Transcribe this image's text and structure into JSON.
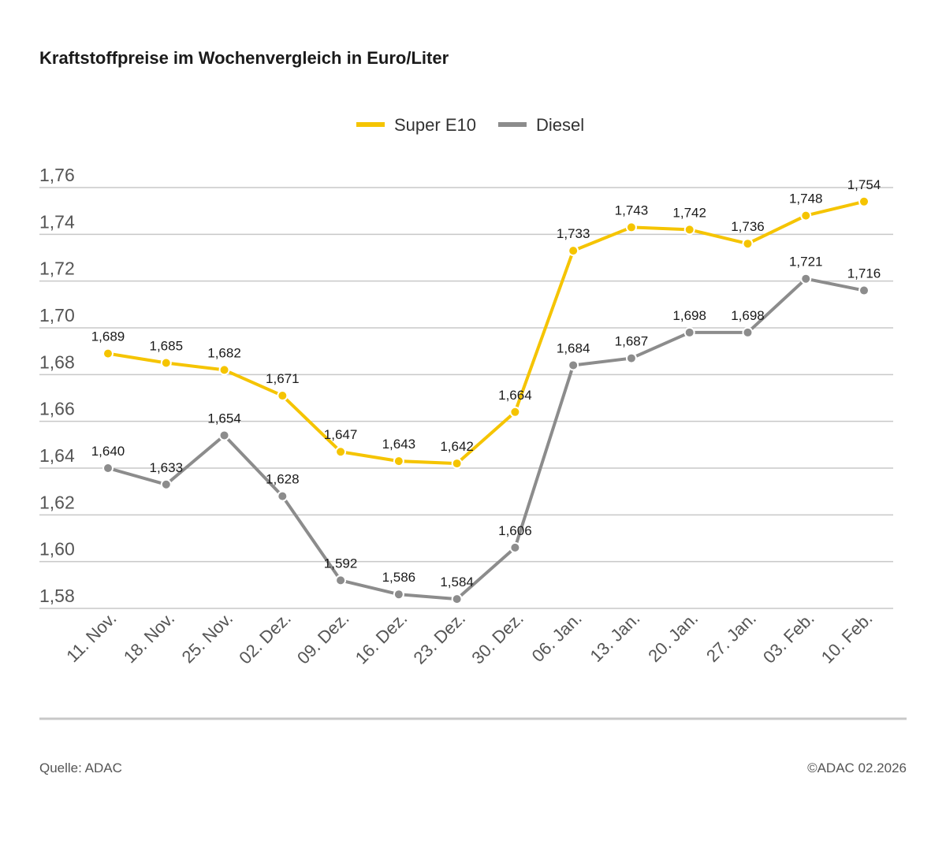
{
  "chart_data": {
    "type": "line",
    "title": "Kraftstoffpreise im Wochenvergleich in Euro/Liter",
    "categories": [
      "11. Nov.",
      "18. Nov.",
      "25. Nov.",
      "02. Dez.",
      "09. Dez.",
      "16. Dez.",
      "23. Dez.",
      "30. Dez.",
      "06. Jan.",
      "13. Jan.",
      "20. Jan.",
      "27. Jan.",
      "03. Feb.",
      "10. Feb."
    ],
    "series": [
      {
        "name": "Super E10",
        "color": "#f5c400",
        "values": [
          1.689,
          1.685,
          1.682,
          1.671,
          1.647,
          1.643,
          1.642,
          1.664,
          1.733,
          1.743,
          1.742,
          1.736,
          1.748,
          1.754
        ],
        "value_labels": [
          "1,689",
          "1,685",
          "1,682",
          "1,671",
          "1,647",
          "1,643",
          "1,642",
          "1,664",
          "1,733",
          "1,743",
          "1,742",
          "1,736",
          "1,748",
          "1,754"
        ]
      },
      {
        "name": "Diesel",
        "color": "#8c8c8c",
        "values": [
          1.64,
          1.633,
          1.654,
          1.628,
          1.592,
          1.586,
          1.584,
          1.606,
          1.684,
          1.687,
          1.698,
          1.698,
          1.721,
          1.716
        ],
        "value_labels": [
          "1,640",
          "1,633",
          "1,654",
          "1,628",
          "1,592",
          "1,586",
          "1,584",
          "1,606",
          "1,684",
          "1,687",
          "1,698",
          "1,698",
          "1,721",
          "1,716"
        ]
      }
    ],
    "ylim": [
      1.58,
      1.76
    ],
    "yticks": [
      {
        "value": 1.58,
        "label": "1,58"
      },
      {
        "value": 1.6,
        "label": "1,60"
      },
      {
        "value": 1.62,
        "label": "1,62"
      },
      {
        "value": 1.64,
        "label": "1,64"
      },
      {
        "value": 1.66,
        "label": "1,66"
      },
      {
        "value": 1.68,
        "label": "1,68"
      },
      {
        "value": 1.7,
        "label": "1,70"
      },
      {
        "value": 1.72,
        "label": "1,72"
      },
      {
        "value": 1.74,
        "label": "1,74"
      },
      {
        "value": 1.76,
        "label": "1,76"
      }
    ],
    "grid": true,
    "legend": "top",
    "source": "Quelle: ADAC",
    "credit": "©ADAC 02.2026"
  }
}
